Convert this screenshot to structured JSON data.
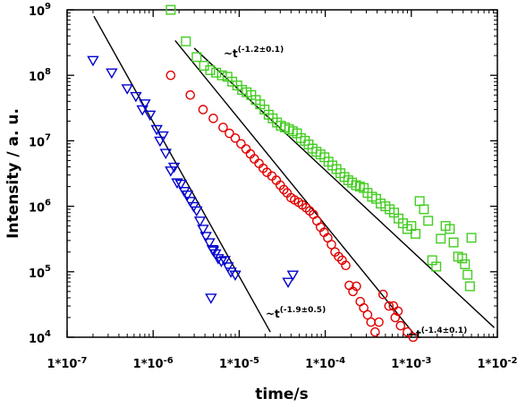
{
  "chart_data": {
    "type": "scatter",
    "xlabel": "time/s",
    "ylabel": "Intensity  / a. u.",
    "x_scale": "log",
    "y_scale": "log",
    "xlim": [
      1e-07,
      0.01
    ],
    "ylim": [
      10000,
      1000000000
    ],
    "x_ticks": [
      1e-07,
      1e-06,
      1e-05,
      0.0001,
      0.001,
      0.01
    ],
    "x_tick_labels": [
      "1*10",
      "1*10",
      "1*10",
      "1*10",
      "1*10",
      "1*10"
    ],
    "x_tick_exps": [
      "-7",
      "-6",
      "-5",
      "-4",
      "-3",
      "-2"
    ],
    "y_ticks": [
      10000,
      100000,
      1000000,
      10000000,
      100000000,
      1000000000
    ],
    "y_tick_labels": [
      "10",
      "10",
      "10",
      "10",
      "10",
      "10"
    ],
    "y_tick_exps": [
      "4",
      "5",
      "6",
      "7",
      "8",
      "9"
    ],
    "grid": false,
    "series": [
      {
        "marker": "triangle-down",
        "color": "#0000cc",
        "x": [
          2e-07,
          3.3e-07,
          5e-07,
          6.3e-07,
          7.5e-07,
          8e-07,
          9.2e-07,
          1.1e-06,
          1.2e-06,
          1.3e-06,
          1.4e-06,
          1.6e-06,
          1.75e-06,
          1.9e-06,
          2.1e-06,
          2.3e-06,
          2.5e-06,
          2.7e-06,
          2.95e-06,
          3.2e-06,
          3.5e-06,
          3.8e-06,
          4.1e-06,
          4.5e-06,
          4.9e-06,
          5.3e-06,
          5.7e-06,
          6.2e-06,
          6.8e-06,
          7.4e-06,
          8e-06,
          9e-06,
          4.7e-06,
          5e-06,
          3.7e-05,
          4.2e-05
        ],
        "y": [
          170000000,
          110000000,
          63000000,
          48000000,
          30000000,
          37000000,
          25000000,
          15000000,
          10000000,
          12000000,
          6500000,
          3500000,
          4000000,
          2300000,
          2200000,
          1700000,
          1500000,
          1200000,
          1000000,
          860000,
          600000,
          450000,
          350000,
          280000,
          220000,
          190000,
          160000,
          145000,
          150000,
          120000,
          100000,
          90000,
          40000,
          210000,
          70000,
          90000
        ]
      },
      {
        "marker": "circle",
        "color": "#e00000",
        "x": [
          1.6e-06,
          2.7e-06,
          3.8e-06,
          5e-06,
          6.5e-06,
          7.7e-06,
          9e-06,
          1.05e-05,
          1.2e-05,
          1.35e-05,
          1.5e-05,
          1.7e-05,
          1.9e-05,
          2.1e-05,
          2.4e-05,
          2.7e-05,
          3e-05,
          3.3e-05,
          3.6e-05,
          4e-05,
          4.4e-05,
          4.9e-05,
          5.4e-05,
          6e-05,
          6.6e-05,
          7.3e-05,
          8e-05,
          8.8e-05,
          9.7e-05,
          0.000107,
          0.000118,
          0.00013,
          0.000143,
          0.000157,
          0.000173,
          0.00019,
          0.00021,
          0.00023,
          0.000255,
          0.00028,
          0.00031,
          0.00034,
          0.00038,
          0.00042,
          0.00047,
          0.00055,
          0.00065,
          0.00075,
          0.0009,
          0.00105,
          0.0007,
          0.00062
        ],
        "y": [
          100000000,
          50000000,
          30000000,
          22000000,
          16000000,
          13000000,
          11000000,
          9000000,
          7500000,
          6300000,
          5300000,
          4500000,
          3800000,
          3300000,
          2900000,
          2500000,
          2100000,
          1800000,
          1600000,
          1350000,
          1250000,
          1150000,
          1050000,
          950000,
          850000,
          750000,
          600000,
          480000,
          400000,
          330000,
          260000,
          200000,
          170000,
          150000,
          125000,
          62000,
          50000,
          60000,
          35000,
          28000,
          22000,
          17000,
          12000,
          17000,
          45000,
          30000,
          20000,
          15000,
          12000,
          10000,
          25000,
          30000
        ]
      },
      {
        "marker": "square",
        "color": "#44cc22",
        "x": [
          1.6e-06,
          2.4e-06,
          3.2e-06,
          3.9e-06,
          4.6e-06,
          5.4e-06,
          6.3e-06,
          7.3e-06,
          8.3e-06,
          9.5e-06,
          1.08e-05,
          1.22e-05,
          1.38e-05,
          1.56e-05,
          1.75e-05,
          1.97e-05,
          2.2e-05,
          2.45e-05,
          2.75e-05,
          3.05e-05,
          3.4e-05,
          3.8e-05,
          4.2e-05,
          4.7e-05,
          5.2e-05,
          5.8e-05,
          6.4e-05,
          7.1e-05,
          7.9e-05,
          8.8e-05,
          9.8e-05,
          0.000109,
          0.000121,
          0.000135,
          0.00015,
          0.000167,
          0.000185,
          0.000205,
          0.000228,
          0.000253,
          0.00028,
          0.00031,
          0.00035,
          0.00039,
          0.00044,
          0.0005,
          0.00056,
          0.00063,
          0.00071,
          0.0008,
          0.0009,
          0.001,
          0.00112,
          0.00125,
          0.0014,
          0.00157,
          0.00175,
          0.00195,
          0.0022,
          0.0025,
          0.0028,
          0.0031,
          0.0035,
          0.0039,
          0.0042,
          0.0045,
          0.0048,
          0.005
        ],
        "y": [
          1000000000,
          330000000,
          190000000,
          140000000,
          120000000,
          110000000,
          100000000,
          95000000,
          80000000,
          70000000,
          60000000,
          55000000,
          50000000,
          42000000,
          36000000,
          30000000,
          25000000,
          22000000,
          19000000,
          17000000,
          16000000,
          15000000,
          14000000,
          13000000,
          11000000,
          10000000,
          8800000,
          7600000,
          6800000,
          6200000,
          5600000,
          4800000,
          4200000,
          3700000,
          3200000,
          2800000,
          2500000,
          2300000,
          2100000,
          2000000,
          1900000,
          1600000,
          1400000,
          1300000,
          1100000,
          1000000,
          900000,
          800000,
          650000,
          550000,
          450000,
          500000,
          380000,
          1200000,
          900000,
          600000,
          150000,
          120000,
          320000,
          500000,
          450000,
          280000,
          170000,
          160000,
          130000,
          90000,
          60000,
          330000
        ]
      }
    ],
    "fit_lines": [
      {
        "x": [
          2.05e-07,
          2.3e-05
        ],
        "y": [
          800000000,
          12000
        ]
      },
      {
        "x": [
          1.8e-06,
          0.00112
        ],
        "y": [
          340000000,
          10500
        ]
      },
      {
        "x": [
          3e-06,
          0.0092
        ],
        "y": [
          260000000,
          14000
        ]
      }
    ],
    "annotations": [
      {
        "prefix": "~t",
        "exponent": "(-1.2±0.1)"
      },
      {
        "prefix": "~t",
        "exponent": "(-1.9±0.5)"
      },
      {
        "prefix": "~t",
        "exponent": "(-1.4±0.1)"
      }
    ]
  }
}
